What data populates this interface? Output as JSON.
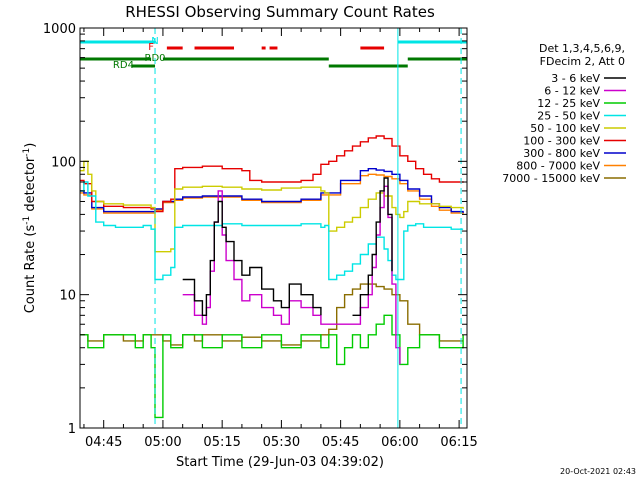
{
  "chart_data": {
    "type": "line",
    "title": "RHESSI Observing Summary Count Rates",
    "xlabel": "Start Time (29-Jun-03 04:39:02)",
    "ylabel_main": "Count Rate (s",
    "ylabel_sup1": "-1",
    "ylabel_mid": " detector",
    "ylabel_sup2": "-1",
    "ylabel_end": ")",
    "y_scale": "log",
    "ylim": [
      1,
      1000
    ],
    "xlim_minutes": [
      279,
      377
    ],
    "y_ticks": [
      {
        "value": 1,
        "label": "1"
      },
      {
        "value": 10,
        "label": "10"
      },
      {
        "value": 100,
        "label": "100"
      },
      {
        "value": 1000,
        "label": "1000"
      }
    ],
    "x_ticks": [
      {
        "minute": 285,
        "label": "04:45"
      },
      {
        "minute": 300,
        "label": "05:00"
      },
      {
        "minute": 315,
        "label": "05:15"
      },
      {
        "minute": 330,
        "label": "05:30"
      },
      {
        "minute": 345,
        "label": "05:45"
      },
      {
        "minute": 360,
        "label": "06:00"
      },
      {
        "minute": 375,
        "label": "06:15"
      }
    ],
    "legend_header": [
      "Det 1,3,4,5,6,9,",
      "FDecim 2, Att 0"
    ],
    "legend_position": "right, outside plot",
    "timestamp": "20-Oct-2021 02:43",
    "series": [
      {
        "name": "3 - 6 keV",
        "color": "#000000",
        "x": [
          279,
          281,
          283,
          290,
          295,
          297,
          298,
          300,
          302,
          305,
          308,
          310,
          311,
          312,
          313,
          314,
          315,
          316,
          318,
          320,
          322,
          325,
          328,
          330,
          332,
          335,
          338,
          340,
          342,
          345,
          348,
          350,
          352,
          353,
          354,
          355,
          356,
          357,
          358,
          359,
          360,
          362,
          365,
          368,
          370,
          373,
          376
        ],
        "y": [
          null,
          null,
          null,
          null,
          null,
          null,
          null,
          null,
          null,
          13,
          9,
          7,
          10,
          18,
          35,
          50,
          32,
          25,
          18,
          14,
          16,
          11,
          9,
          8,
          12,
          10,
          8,
          7,
          null,
          null,
          7,
          10,
          14,
          20,
          35,
          60,
          75,
          40,
          15,
          null,
          null,
          null,
          null,
          null,
          null,
          null,
          null
        ]
      },
      {
        "name": "6 - 12 keV",
        "color": "#cc00cc",
        "x": [
          302,
          305,
          308,
          310,
          311,
          312,
          313,
          314,
          315,
          316,
          318,
          320,
          322,
          325,
          328,
          330,
          332,
          335,
          338,
          340,
          348,
          350,
          352,
          353,
          354,
          355,
          356,
          357,
          358,
          359,
          360
        ],
        "y": [
          null,
          10,
          7,
          6,
          8,
          15,
          35,
          60,
          28,
          18,
          13,
          9,
          10,
          8,
          7,
          6,
          9,
          8,
          7,
          6,
          6,
          8,
          10,
          16,
          28,
          45,
          65,
          38,
          12,
          4,
          3
        ]
      },
      {
        "name": "12 - 25 keV",
        "color": "#00cc00",
        "x": [
          279,
          281,
          285,
          290,
          293,
          295,
          297,
          298,
          300,
          302,
          305,
          310,
          315,
          320,
          325,
          330,
          335,
          340,
          342,
          344,
          346,
          348,
          350,
          352,
          354,
          356,
          358,
          360,
          362,
          365,
          370,
          376
        ],
        "y": [
          5,
          4,
          5,
          5,
          4,
          5,
          4,
          1.2,
          5,
          4,
          5,
          4,
          5,
          4,
          5,
          4,
          5,
          4,
          5,
          3,
          4,
          5,
          4,
          5,
          6,
          7,
          5,
          3,
          4,
          5,
          4,
          5
        ]
      },
      {
        "name": "25 - 50 keV",
        "color": "#00e5e5",
        "x": [
          279,
          280,
          281,
          283,
          285,
          288,
          290,
          295,
          297,
          298,
          300,
          302,
          303,
          305,
          310,
          315,
          320,
          325,
          330,
          335,
          340,
          341,
          342,
          344,
          346,
          348,
          350,
          352,
          354,
          356,
          357,
          358,
          359,
          360,
          361,
          362,
          364,
          366,
          370,
          373,
          376
        ],
        "y": [
          60,
          70,
          55,
          35,
          33,
          32,
          32,
          33,
          31,
          13,
          14,
          16,
          32,
          33,
          33,
          34,
          33,
          33,
          33,
          34,
          32,
          33,
          13,
          14,
          15,
          17,
          20,
          24,
          27,
          22,
          18,
          14,
          13,
          13,
          30,
          33,
          34,
          32,
          32,
          31,
          31
        ]
      },
      {
        "name": "50 - 100 keV",
        "color": "#cccc00",
        "x": [
          279,
          280,
          281,
          282,
          283,
          285,
          290,
          295,
          297,
          298,
          300,
          302,
          303,
          305,
          310,
          315,
          320,
          325,
          330,
          335,
          340,
          341,
          342,
          344,
          346,
          348,
          350,
          352,
          354,
          356,
          358,
          359,
          360,
          361,
          362,
          365,
          370,
          373,
          376
        ],
        "y": [
          85,
          100,
          80,
          60,
          50,
          48,
          47,
          47,
          45,
          21,
          21,
          22,
          62,
          64,
          65,
          64,
          62,
          61,
          63,
          64,
          60,
          58,
          30,
          32,
          35,
          38,
          45,
          52,
          58,
          55,
          45,
          40,
          38,
          42,
          50,
          48,
          46,
          45,
          44
        ]
      },
      {
        "name": "100 - 300 keV",
        "color": "#e60000",
        "x": [
          279,
          280,
          282,
          285,
          290,
          295,
          297,
          298,
          300,
          302,
          303,
          305,
          310,
          315,
          320,
          322,
          325,
          330,
          335,
          338,
          340,
          342,
          344,
          346,
          348,
          350,
          352,
          354,
          356,
          358,
          360,
          362,
          364,
          366,
          368,
          370,
          373,
          376
        ],
        "y": [
          72,
          68,
          50,
          46,
          45,
          45,
          44,
          42,
          50,
          52,
          88,
          90,
          92,
          88,
          85,
          72,
          70,
          70,
          72,
          80,
          95,
          100,
          110,
          120,
          130,
          140,
          150,
          155,
          148,
          130,
          110,
          100,
          88,
          80,
          74,
          70,
          70,
          69
        ]
      },
      {
        "name": "300 - 800 keV",
        "color": "#0000cc",
        "x": [
          279,
          280,
          282,
          285,
          290,
          295,
          297,
          298,
          300,
          303,
          305,
          310,
          315,
          320,
          325,
          330,
          335,
          340,
          345,
          350,
          352,
          354,
          356,
          358,
          360,
          362,
          365,
          368,
          370,
          373,
          376
        ],
        "y": [
          60,
          58,
          45,
          42,
          42,
          42,
          42,
          44,
          50,
          52,
          54,
          55,
          55,
          52,
          50,
          50,
          52,
          58,
          72,
          85,
          88,
          86,
          84,
          80,
          72,
          62,
          55,
          48,
          45,
          42,
          41
        ]
      },
      {
        "name": "800 - 7000 keV",
        "color": "#ff8000",
        "x": [
          279,
          280,
          282,
          285,
          290,
          295,
          297,
          298,
          300,
          303,
          305,
          310,
          315,
          320,
          325,
          330,
          335,
          340,
          345,
          350,
          352,
          354,
          356,
          358,
          360,
          362,
          365,
          368,
          370,
          373,
          376
        ],
        "y": [
          58,
          56,
          44,
          41,
          41,
          41,
          41,
          43,
          49,
          51,
          53,
          54,
          54,
          51,
          49,
          49,
          51,
          56,
          68,
          78,
          80,
          79,
          77,
          74,
          68,
          60,
          52,
          46,
          43,
          41,
          40
        ]
      },
      {
        "name": "7000 - 15000 keV",
        "color": "#8a6d00",
        "x": [
          279,
          281,
          285,
          290,
          295,
          300,
          302,
          305,
          308,
          310,
          315,
          320,
          325,
          330,
          335,
          340,
          342,
          344,
          346,
          348,
          350,
          352,
          354,
          356,
          358,
          360,
          362,
          365,
          370,
          373,
          376
        ],
        "y": [
          5,
          4.5,
          5,
          4.5,
          5,
          4.5,
          4.2,
          5,
          4.5,
          5,
          4.5,
          4.8,
          4.5,
          4.2,
          4.5,
          5,
          5.5,
          8,
          10,
          11,
          12,
          12,
          11.5,
          11,
          10,
          9,
          6,
          5,
          4.5,
          4.5,
          4.5
        ]
      }
    ],
    "state_flags": [
      {
        "label": "N",
        "color": "#00e5e5",
        "segments": [
          [
            279,
            298
          ],
          [
            359.5,
            377
          ]
        ]
      },
      {
        "label": "F",
        "color": "#e60000",
        "segments": [
          [
            301,
            305
          ],
          [
            308,
            318
          ],
          [
            325,
            326
          ],
          [
            327,
            329
          ],
          [
            350,
            356
          ]
        ]
      },
      {
        "label": "RD0",
        "color": "#007800",
        "segments": [
          [
            279,
            297
          ],
          [
            300,
            342
          ],
          [
            362,
            377
          ]
        ]
      },
      {
        "label": "RD4",
        "color": "#007800",
        "segments": [
          [
            292,
            298
          ],
          [
            342,
            362
          ]
        ]
      }
    ],
    "vertical_lines": [
      {
        "minute": 298.0,
        "color": "#00e5e5",
        "style": "dashed"
      },
      {
        "minute": 359.5,
        "color": "#00e5e5",
        "style": "solid"
      },
      {
        "minute": 375.5,
        "color": "#00e5e5",
        "style": "dashed"
      }
    ],
    "grid": false
  }
}
